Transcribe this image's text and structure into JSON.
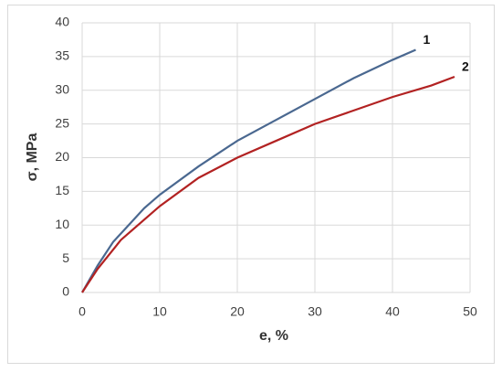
{
  "chart_data": {
    "type": "line",
    "xlabel": "e, %",
    "ylabel": "σ, MPa",
    "xlim": [
      0,
      50
    ],
    "xticks": [
      0,
      10,
      20,
      30,
      40,
      50
    ],
    "ylim": [
      0,
      40
    ],
    "yticks": [
      0,
      5,
      10,
      15,
      20,
      25,
      30,
      35,
      40
    ],
    "grid": true,
    "series": [
      {
        "name": "1",
        "color": "#4a6890",
        "x": [
          0,
          2,
          4,
          6,
          8,
          10,
          15,
          20,
          25,
          30,
          35,
          40,
          43
        ],
        "values": [
          0,
          4,
          7.5,
          10,
          12.5,
          14.5,
          18.7,
          22.5,
          25.6,
          28.7,
          31.8,
          34.5,
          36
        ]
      },
      {
        "name": "2",
        "color": "#b22222",
        "x": [
          0,
          2,
          5,
          10,
          15,
          20,
          25,
          30,
          35,
          40,
          45,
          48
        ],
        "values": [
          0,
          3.5,
          7.8,
          12.8,
          17,
          20,
          22.5,
          25,
          27,
          29,
          30.7,
          32
        ]
      }
    ]
  }
}
